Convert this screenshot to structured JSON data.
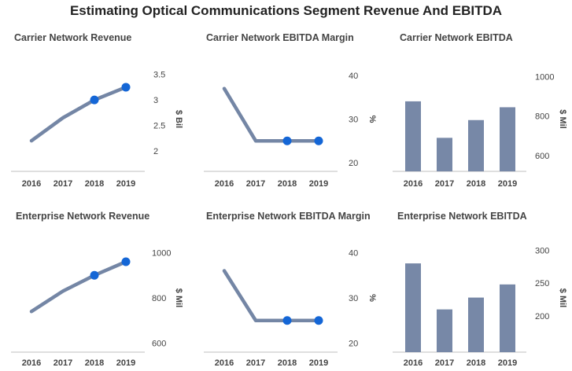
{
  "title": "Estimating Optical Communications Segment Revenue And EBITDA",
  "colors": {
    "line": "#7486a5",
    "bar": "#7788a7",
    "marker": "#1466d6",
    "text": "#444444",
    "axis": "#bfbfbf"
  },
  "chart_data": [
    {
      "id": "carrier-revenue",
      "type": "line",
      "title": "Carrier Network Revenue",
      "categories": [
        "2016",
        "2017",
        "2018",
        "2019"
      ],
      "values": [
        2.2,
        2.65,
        3.0,
        3.25
      ],
      "marked": [
        false,
        false,
        true,
        true
      ],
      "yticks": [
        2,
        2.5,
        3,
        3.5
      ],
      "ylim": [
        1.6,
        3.65
      ],
      "ylabel": "$ Bil"
    },
    {
      "id": "carrier-margin",
      "type": "line",
      "title": "Carrier Network EBITDA Margin",
      "categories": [
        "2016",
        "2017",
        "2018",
        "2019"
      ],
      "values": [
        37,
        25,
        25,
        25
      ],
      "marked": [
        false,
        false,
        true,
        true
      ],
      "yticks": [
        20,
        30,
        40
      ],
      "ylim": [
        18,
        42
      ],
      "ylabel": "%"
    },
    {
      "id": "carrier-ebitda",
      "type": "bar",
      "title": "Carrier Network EBITDA",
      "categories": [
        "2016",
        "2017",
        "2018",
        "2019"
      ],
      "values": [
        875,
        690,
        780,
        845
      ],
      "yticks": [
        600,
        800,
        1000
      ],
      "ylim": [
        520,
        1050
      ],
      "ylabel": "$ Mil"
    },
    {
      "id": "enterprise-revenue",
      "type": "line",
      "title": "Enterprise Network Revenue",
      "categories": [
        "2016",
        "2017",
        "2018",
        "2019"
      ],
      "values": [
        740,
        830,
        900,
        960
      ],
      "marked": [
        false,
        false,
        true,
        true
      ],
      "yticks": [
        600,
        800,
        1000
      ],
      "ylim": [
        560,
        1040
      ],
      "ylabel": "$ Mil"
    },
    {
      "id": "enterprise-margin",
      "type": "line",
      "title": "Enterprise Network EBITDA Margin",
      "categories": [
        "2016",
        "2017",
        "2018",
        "2019"
      ],
      "values": [
        36,
        25,
        25,
        25
      ],
      "marked": [
        false,
        false,
        true,
        true
      ],
      "yticks": [
        20,
        30,
        40
      ],
      "ylim": [
        18,
        42
      ],
      "ylabel": "%"
    },
    {
      "id": "enterprise-ebitda",
      "type": "bar",
      "title": "Enterprise Network EBITDA",
      "categories": [
        "2016",
        "2017",
        "2018",
        "2019"
      ],
      "values": [
        280,
        210,
        228,
        248
      ],
      "yticks": [
        200,
        250,
        300
      ],
      "ylim": [
        145,
        310
      ],
      "ylabel": "$ Mil"
    }
  ]
}
